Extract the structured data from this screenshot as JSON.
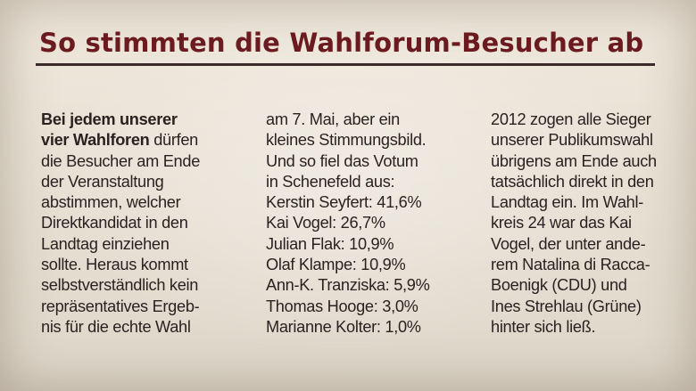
{
  "headline": "So stimmten die Wahlforum-Besucher ab",
  "colors": {
    "headline": "#6b1a1f",
    "text": "#2a2220",
    "paper": "#e9e2d6"
  },
  "columns": [
    {
      "lines": [
        [
          {
            "t": "Bei jedem unserer",
            "b": true
          }
        ],
        [
          {
            "t": "vier Wahlforen",
            "b": true
          },
          {
            "t": " dürfen",
            "b": false
          }
        ],
        [
          {
            "t": "die Besucher am Ende",
            "b": false
          }
        ],
        [
          {
            "t": "der Veranstaltung",
            "b": false
          }
        ],
        [
          {
            "t": "abstimmen, welcher",
            "b": false
          }
        ],
        [
          {
            "t": "Direktkandidat in den",
            "b": false
          }
        ],
        [
          {
            "t": "Landtag einziehen",
            "b": false
          }
        ],
        [
          {
            "t": "sollte. Heraus kommt",
            "b": false
          }
        ],
        [
          {
            "t": "selbstverständlich kein",
            "b": false
          }
        ],
        [
          {
            "t": "repräsentatives Ergeb-",
            "b": false
          }
        ],
        [
          {
            "t": "nis für die echte Wahl",
            "b": false
          }
        ]
      ]
    },
    {
      "lines": [
        [
          {
            "t": "am 7. Mai, aber ein",
            "b": false
          }
        ],
        [
          {
            "t": "kleines Stimmungsbild.",
            "b": false
          }
        ],
        [
          {
            "t": "Und so fiel das Votum",
            "b": false
          }
        ],
        [
          {
            "t": "in Schenefeld aus:",
            "b": false
          }
        ],
        [
          {
            "t": "Kerstin Seyfert: 41,6%",
            "b": false
          }
        ],
        [
          {
            "t": "Kai Vogel: 26,7%",
            "b": false
          }
        ],
        [
          {
            "t": "Julian Flak: 10,9%",
            "b": false
          }
        ],
        [
          {
            "t": "Olaf Klampe: 10,9%",
            "b": false
          }
        ],
        [
          {
            "t": "Ann-K. Tranziska: 5,9%",
            "b": false
          }
        ],
        [
          {
            "t": "Thomas Hooge: 3,0%",
            "b": false
          }
        ],
        [
          {
            "t": "Marianne Kolter: 1,0%",
            "b": false
          }
        ]
      ]
    },
    {
      "lines": [
        [
          {
            "t": "2012 zogen alle Sieger",
            "b": false
          }
        ],
        [
          {
            "t": "unserer Publikumswahl",
            "b": false
          }
        ],
        [
          {
            "t": "übrigens am Ende auch",
            "b": false
          }
        ],
        [
          {
            "t": "tatsächlich direkt in den",
            "b": false
          }
        ],
        [
          {
            "t": "Landtag ein. Im Wahl-",
            "b": false
          }
        ],
        [
          {
            "t": "kreis 24 war das Kai",
            "b": false
          }
        ],
        [
          {
            "t": "Vogel, der unter ande-",
            "b": false
          }
        ],
        [
          {
            "t": "rem Natalina di Racca-",
            "b": false
          }
        ],
        [
          {
            "t": "Boenigk (CDU) und",
            "b": false
          }
        ],
        [
          {
            "t": "Ines Strehlau (Grüne)",
            "b": false
          }
        ],
        [
          {
            "t": "hinter sich ließ.",
            "b": false
          }
        ]
      ]
    }
  ]
}
